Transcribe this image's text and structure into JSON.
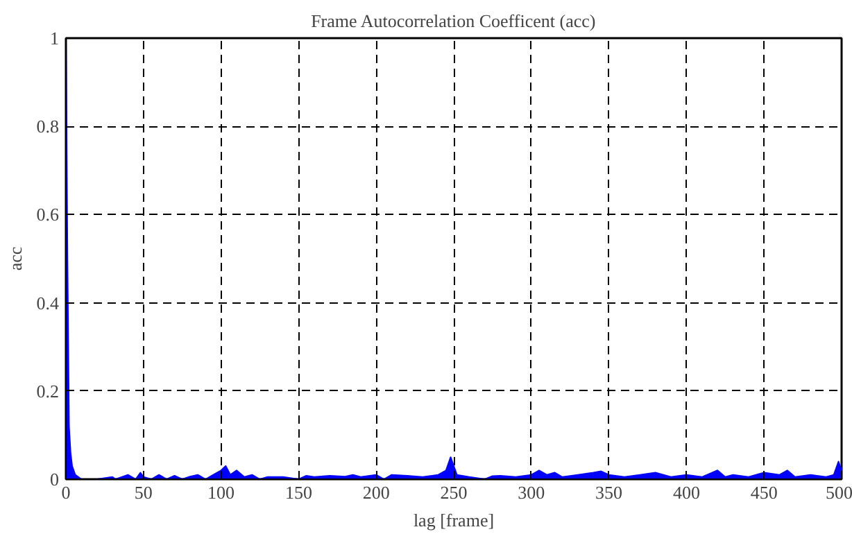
{
  "chart_data": {
    "type": "area",
    "title": "Frame Autocorrelation Coefficent (acc)",
    "xlabel": "lag [frame]",
    "ylabel": "acc",
    "x": [
      0,
      1,
      2,
      3,
      4,
      5,
      6,
      8,
      10,
      20,
      30,
      32,
      40,
      45,
      48,
      50,
      55,
      60,
      65,
      70,
      75,
      80,
      85,
      90,
      95,
      100,
      103,
      106,
      110,
      115,
      120,
      125,
      130,
      140,
      150,
      155,
      160,
      170,
      180,
      185,
      190,
      200,
      205,
      210,
      220,
      230,
      240,
      245,
      248,
      250,
      252,
      260,
      270,
      275,
      280,
      290,
      300,
      305,
      310,
      315,
      320,
      330,
      340,
      345,
      350,
      360,
      370,
      380,
      390,
      400,
      410,
      420,
      425,
      430,
      440,
      450,
      460,
      465,
      470,
      480,
      490,
      495,
      498,
      500
    ],
    "series": [
      {
        "color": "#0000ff",
        "values": [
          1,
          0.5,
          0.12,
          0.06,
          0.03,
          0.02,
          0.01,
          0.005,
          0,
          0,
          0.005,
          0,
          0.01,
          0,
          0.015,
          0.005,
          0,
          0.01,
          0,
          0.008,
          0,
          0.006,
          0.01,
          0,
          0.01,
          0.02,
          0.03,
          0.01,
          0.02,
          0.005,
          0.01,
          0,
          0.005,
          0.005,
          0,
          0.008,
          0.005,
          0.008,
          0.006,
          0.01,
          0.005,
          0.01,
          0,
          0.01,
          0.008,
          0.005,
          0.01,
          0.02,
          0.05,
          0.03,
          0.01,
          0.005,
          0,
          0.007,
          0.008,
          0.005,
          0.01,
          0.02,
          0.01,
          0.015,
          0.005,
          0.01,
          0.015,
          0.018,
          0.01,
          0.005,
          0.01,
          0.015,
          0.005,
          0.01,
          0.005,
          0.02,
          0.005,
          0.01,
          0.005,
          0.015,
          0.01,
          0.02,
          0.005,
          0.01,
          0.005,
          0.01,
          0.04,
          0.02
        ]
      }
    ],
    "xlim": [
      0,
      500
    ],
    "ylim": [
      0,
      1
    ],
    "xticks": [
      0,
      50,
      100,
      150,
      200,
      250,
      300,
      350,
      400,
      450,
      500
    ],
    "yticks": [
      0,
      0.2,
      0.4,
      0.6,
      0.8,
      1
    ],
    "grid": true,
    "line_style": "solid"
  }
}
